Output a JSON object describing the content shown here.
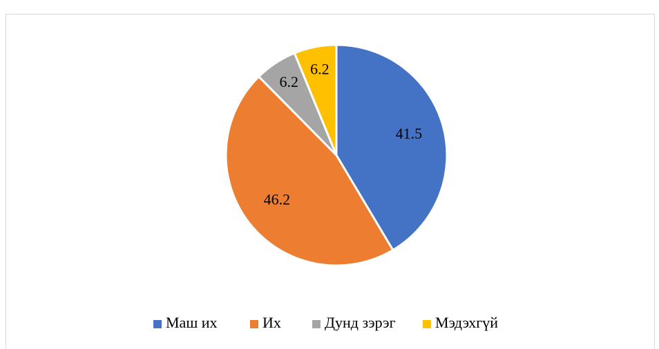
{
  "chart_data": {
    "type": "pie",
    "categories": [
      "Маш их",
      "Их",
      "Дунд зэрэг",
      "Мэдэхгүй"
    ],
    "values": [
      41.5,
      46.2,
      6.2,
      6.2
    ],
    "colors": [
      "#4472c4",
      "#ed7d31",
      "#a5a5a5",
      "#ffc000"
    ],
    "legend": "bottom"
  }
}
